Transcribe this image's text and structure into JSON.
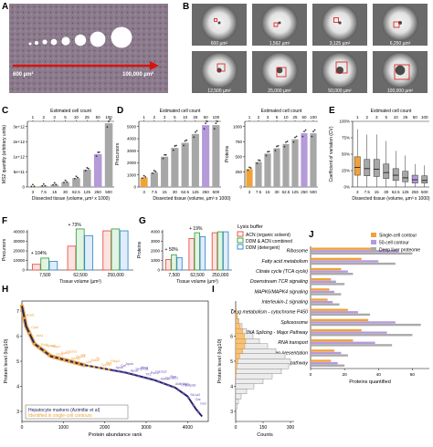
{
  "figure": {
    "panel_letters": [
      "A",
      "B",
      "C",
      "D",
      "E",
      "F",
      "G",
      "H",
      "I",
      "J"
    ]
  },
  "panel_a": {
    "arrow_start_label": "600 µm²",
    "arrow_end_label": "100,000 µm²",
    "colors": {
      "tissue": "#8a7888",
      "arrow": "#d8140f"
    }
  },
  "panel_b": {
    "tiles": [
      {
        "label": "600 µm²"
      },
      {
        "label": "1,562 µm²"
      },
      {
        "label": "3,125 µm²"
      },
      {
        "label": "6,250 µm²"
      },
      {
        "label": "12,500 µm²"
      },
      {
        "label": "25,000 µm²"
      },
      {
        "label": "50,000 µm²"
      },
      {
        "label": "100,000 µm²"
      }
    ]
  },
  "chart_data": [
    {
      "panel": "C",
      "type": "bar",
      "top_axis_label": "Estimated cell count",
      "top_ticks": [
        "1",
        "2",
        "3",
        "5",
        "10",
        "25",
        "50",
        "100"
      ],
      "categories": [
        "3",
        "7.5",
        "15",
        "30",
        "62.5",
        "125",
        "250",
        "500"
      ],
      "xlabel": "Dissected tissue (volume, µm³ x 1000)",
      "ylabel": "MS2 quantity (arbitrary units)",
      "yticks": [
        "0",
        "5e+11",
        "1e+12",
        "2e+12",
        "3e+12"
      ],
      "ylim": [
        0,
        3400000000000.0
      ],
      "values": [
        30000000000.0,
        60000000000.0,
        120000000000.0,
        250000000000.0,
        460000000000.0,
        900000000000.0,
        1700000000000.0,
        3300000000000.0
      ],
      "highlight": {
        "orange": "3",
        "purple": "250"
      }
    },
    {
      "panel": "D-left",
      "type": "bar",
      "top_axis_label": "Estimated cell count",
      "top_ticks": [
        "1",
        "2",
        "3",
        "5",
        "10",
        "25",
        "50",
        "100"
      ],
      "categories": [
        "3",
        "7.5",
        "15",
        "30",
        "62.5",
        "125",
        "250",
        "500"
      ],
      "xlabel": "Dissected tissue (volume, µm³ x 1000)",
      "ylabel": "Precursors",
      "yticks": [
        "0",
        "1000",
        "2000",
        "3000",
        "4000",
        "5000"
      ],
      "ylim": [
        0,
        5200
      ],
      "values": [
        750,
        1150,
        2400,
        3100,
        3500,
        4200,
        4900,
        4900
      ],
      "highlight": {
        "orange": "3",
        "purple": "250"
      }
    },
    {
      "panel": "D-right",
      "type": "bar",
      "top_axis_label": "Estimated cell count",
      "top_ticks": [
        "1",
        "2",
        "3",
        "5",
        "10",
        "25",
        "50",
        "100"
      ],
      "categories": [
        "3",
        "7.5",
        "15",
        "30",
        "62.5",
        "125",
        "250",
        "500"
      ],
      "xlabel": "",
      "ylabel": "Proteins",
      "yticks": [
        "0",
        "250",
        "500",
        "750",
        "1000"
      ],
      "ylim": [
        0,
        1100
      ],
      "values": [
        300,
        420,
        560,
        650,
        720,
        800,
        900,
        900
      ],
      "highlight": {
        "orange": "3",
        "purple": "250"
      }
    },
    {
      "panel": "E",
      "type": "box",
      "top_axis_label": "Estimated cell count",
      "top_ticks": [
        "1",
        "2",
        "3",
        "5",
        "10",
        "25",
        "50",
        "100"
      ],
      "categories": [
        "3",
        "7.5",
        "15",
        "30",
        "62.5",
        "125",
        "250",
        "500"
      ],
      "xlabel": "Dissected tissue (volume, µm³ x 1000)",
      "ylabel": "Coefficient of variation (CV)",
      "yticks": [
        "0%",
        "25%",
        "50%",
        "75%",
        "100%"
      ],
      "ylim": [
        0,
        1.0
      ],
      "boxes": [
        {
          "q1": 0.18,
          "median": 0.3,
          "q3": 0.46,
          "whisker_low": 0.0,
          "whisker_high": 0.88
        },
        {
          "q1": 0.17,
          "median": 0.28,
          "q3": 0.42,
          "whisker_low": 0.0,
          "whisker_high": 0.8
        },
        {
          "q1": 0.16,
          "median": 0.27,
          "q3": 0.42,
          "whisker_low": 0.0,
          "whisker_high": 0.8
        },
        {
          "q1": 0.13,
          "median": 0.22,
          "q3": 0.35,
          "whisker_low": 0.0,
          "whisker_high": 0.7
        },
        {
          "q1": 0.1,
          "median": 0.18,
          "q3": 0.28,
          "whisker_low": 0.0,
          "whisker_high": 0.55
        },
        {
          "q1": 0.08,
          "median": 0.14,
          "q3": 0.24,
          "whisker_low": 0.0,
          "whisker_high": 0.48
        },
        {
          "q1": 0.06,
          "median": 0.11,
          "q3": 0.18,
          "whisker_low": 0.0,
          "whisker_high": 0.35
        },
        {
          "q1": 0.06,
          "median": 0.1,
          "q3": 0.17,
          "whisker_low": 0.0,
          "whisker_high": 0.33
        }
      ],
      "highlight": {
        "orange": "3",
        "purple": "250"
      }
    },
    {
      "panel": "F",
      "type": "bar",
      "categories": [
        "7,500",
        "62,500",
        "250,000"
      ],
      "xlabel": "Tissue volume (µm³)",
      "ylabel": "Precursors",
      "yticks": [
        "0",
        "10000",
        "20000",
        "30000",
        "40000"
      ],
      "ylim": [
        0,
        42000
      ],
      "series": [
        {
          "name": "ACN (organic solvent)",
          "values": [
            6000,
            25000,
            41000
          ]
        },
        {
          "name": "DDM & ACN combined",
          "values": [
            12500,
            43000,
            43000
          ]
        },
        {
          "name": "DDM (detergent)",
          "values": [
            9000,
            36000,
            41000
          ]
        }
      ],
      "annotations": [
        "+ 104%",
        "+ 73%"
      ]
    },
    {
      "panel": "G",
      "type": "bar",
      "categories": [
        "7,500",
        "62,500",
        "250,000"
      ],
      "xlabel": "Tissue volume (µm³)",
      "ylabel": "Proteins",
      "yticks": [
        "0",
        "1000",
        "2000",
        "3000",
        "4000"
      ],
      "ylim": [
        0,
        4200
      ],
      "series": [
        {
          "name": "ACN (organic solvent)",
          "values": [
            1100,
            3300,
            3900
          ]
        },
        {
          "name": "DDM & ACN combined",
          "values": [
            1600,
            3900,
            4000
          ]
        },
        {
          "name": "DDM (detergent)",
          "values": [
            1300,
            3500,
            4000
          ]
        }
      ],
      "annotations": [
        "+ 50%",
        "+ 19%"
      ]
    },
    {
      "panel": "H",
      "type": "scatter",
      "xlabel": "Protein abundance rank",
      "ylabel": "Protein level (log10)",
      "xticks": [
        "0",
        "1000",
        "2000",
        "3000",
        "4000"
      ],
      "yticks": [
        "3",
        "4",
        "5",
        "6",
        "7"
      ],
      "xlim": [
        0,
        4500
      ],
      "ylim": [
        2.6,
        7.4
      ],
      "curve": [
        [
          0,
          7.2
        ],
        [
          100,
          6.4
        ],
        [
          300,
          5.7
        ],
        [
          700,
          5.2
        ],
        [
          1500,
          4.85
        ],
        [
          2500,
          4.55
        ],
        [
          3200,
          4.25
        ],
        [
          3700,
          3.95
        ],
        [
          4000,
          3.6
        ],
        [
          4200,
          3.1
        ],
        [
          4350,
          2.8
        ]
      ],
      "markers": [
        "Acat1",
        "Cps1",
        "Ass1",
        "Pck1",
        "Apoa1",
        "Fabp1",
        "Sod1",
        "Gpx1",
        "Cyp2e1",
        "Apoa2",
        "Apoc3",
        "Alb",
        "Uox",
        "Aldob",
        "Ttr",
        "Cyp2f2",
        "Hpx",
        "Fabp2",
        "Apoh",
        "Cat",
        "Apob",
        "Apoe",
        "Serpina1",
        "Ahsg",
        "Tfr2",
        "Pon1",
        "Cyp1a2",
        "Adh4",
        "Cyp3a11",
        "Rgn",
        "Aldh1b1",
        "Cyp2c",
        "Entpd8",
        "Slc1a2",
        "Oat",
        "Glul"
      ],
      "legend": [
        "Hepatocyte markers (Azimifar et al)",
        "Identified in single-cell contours"
      ]
    },
    {
      "panel": "I",
      "type": "histogram",
      "xlabel": "Counts",
      "ylabel": "Protein level (log10)",
      "xticks": [
        "0",
        "150",
        "300"
      ],
      "xlim": [
        0,
        320
      ],
      "ylim": [
        2.6,
        7.4
      ],
      "bins": [
        {
          "y": 7.0,
          "grey": 4,
          "orange": 3
        },
        {
          "y": 6.8,
          "grey": 8,
          "orange": 6
        },
        {
          "y": 6.6,
          "grey": 18,
          "orange": 12
        },
        {
          "y": 6.4,
          "grey": 35,
          "orange": 25
        },
        {
          "y": 6.2,
          "grey": 60,
          "orange": 38
        },
        {
          "y": 6.0,
          "grey": 95,
          "orange": 48
        },
        {
          "y": 5.8,
          "grey": 130,
          "orange": 55
        },
        {
          "y": 5.6,
          "grey": 175,
          "orange": 50
        },
        {
          "y": 5.4,
          "grey": 220,
          "orange": 38
        },
        {
          "y": 5.2,
          "grey": 270,
          "orange": 22
        },
        {
          "y": 5.0,
          "grey": 300,
          "orange": 12
        },
        {
          "y": 4.8,
          "grey": 290,
          "orange": 6
        },
        {
          "y": 4.6,
          "grey": 250,
          "orange": 3
        },
        {
          "y": 4.4,
          "grey": 200,
          "orange": 1
        },
        {
          "y": 4.2,
          "grey": 150,
          "orange": 0
        },
        {
          "y": 4.0,
          "grey": 100,
          "orange": 0
        },
        {
          "y": 3.8,
          "grey": 60,
          "orange": 0
        },
        {
          "y": 3.6,
          "grey": 30,
          "orange": 0
        },
        {
          "y": 3.4,
          "grey": 15,
          "orange": 0
        },
        {
          "y": 3.2,
          "grey": 6,
          "orange": 0
        }
      ]
    },
    {
      "panel": "J",
      "type": "bar",
      "orientation": "horizontal",
      "xlabel": "Proteins quantified",
      "xticks": [
        "0",
        "20",
        "40",
        "60"
      ],
      "xlim": [
        0,
        70
      ],
      "categories": [
        "Ribosome",
        "Fatty acid metabolism",
        "Citrate cycle (TCA cycle)",
        "Downstream TCR signaling",
        "MAPK6/MAPK4 signaling",
        "Interleukin-1 signaling",
        "Drug metabolism - cytochrome P450",
        "Spliceosome",
        "mRNA Splicing - Major Pathway",
        "RNA transport",
        "MHC class II antigen presentation",
        "Insulin signaling pathway"
      ],
      "series": [
        {
          "name": "Single-cell contour",
          "values": [
            38,
            30,
            18,
            12,
            11,
            10,
            22,
            34,
            30,
            25,
            14,
            12
          ]
        },
        {
          "name": "50-cell contour",
          "values": [
            52,
            40,
            22,
            15,
            14,
            13,
            28,
            50,
            45,
            38,
            18,
            16
          ]
        },
        {
          "name": "Deep liver proteome",
          "values": [
            60,
            50,
            25,
            20,
            18,
            17,
            35,
            65,
            60,
            48,
            22,
            20
          ]
        }
      ]
    }
  ],
  "legends": {
    "lysis_title": "Lysis buffer",
    "lysis_items": [
      "ACN (organic solvent)",
      "DDM & ACN combined",
      "DDM (detergent)"
    ],
    "lysis_colors": [
      "#e8534a",
      "#3aa845",
      "#3b8bd0"
    ],
    "j_items": [
      "Single-cell contour",
      "50-cell contour",
      "Deep liver proteome"
    ],
    "j_colors": [
      "#f0a23a",
      "#b59ad9",
      "#aaaaaa"
    ]
  },
  "colors": {
    "grey_bar": "#a7a7a7",
    "orange": "#f0a23a",
    "purple": "#b59ad9",
    "curve": "#24285e",
    "marker_orange": "#f0a23a",
    "marker_purple": "#6d4fb5"
  }
}
